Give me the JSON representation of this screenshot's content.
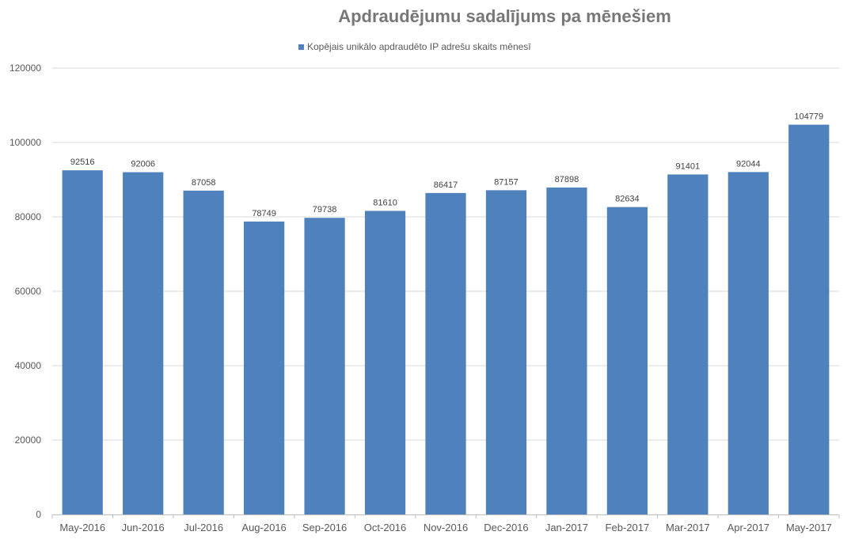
{
  "chart_data": {
    "type": "bar",
    "title": "Apdraudējumu sadalījums pa mēnešiem",
    "legend": {
      "position": "top",
      "label": "Kopējais unikālo apdraudēto IP adrešu skaits mēnesī"
    },
    "categories": [
      "May-2016",
      "Jun-2016",
      "Jul-2016",
      "Aug-2016",
      "Sep-2016",
      "Oct-2016",
      "Nov-2016",
      "Dec-2016",
      "Jan-2017",
      "Feb-2017",
      "Mar-2017",
      "Apr-2017",
      "May-2017"
    ],
    "series": [
      {
        "name": "Kopējais unikālo apdraudēto IP adrešu skaits mēnesī",
        "values": [
          92516,
          92006,
          87058,
          78749,
          79738,
          81610,
          86417,
          87157,
          87898,
          82634,
          91401,
          92044,
          104779
        ],
        "labels": [
          "92516",
          "92006",
          "87058",
          "78749",
          "79738",
          "81610",
          "86417",
          "87157",
          "87898",
          "82634",
          "91401",
          "92044",
          "104779"
        ]
      }
    ],
    "ylim": [
      0,
      120000
    ],
    "yticks": [
      "0",
      "20000",
      "40000",
      "60000",
      "80000",
      "100000",
      "120000"
    ],
    "grid": true,
    "colors": {
      "bar": "#4f81bd",
      "grid": "#d9d9d9",
      "axis": "#bfbfbf",
      "text": "#595959"
    }
  }
}
